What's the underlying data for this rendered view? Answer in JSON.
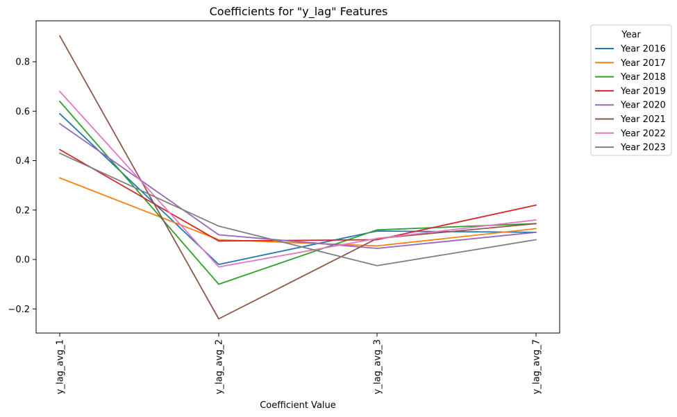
{
  "chart_data": {
    "type": "line",
    "title": "Coefficients for \"y_lag\" Features",
    "xlabel": "Coefficient Value",
    "ylabel": "",
    "categories": [
      "y_lag_avg_1",
      "y_lag_avg_2",
      "y_lag_avg_3",
      "y_lag_avg_7"
    ],
    "ylim": [
      -0.3,
      0.95
    ],
    "yticks": [
      -0.2,
      0.0,
      0.2,
      0.4,
      0.6,
      0.8
    ],
    "ytick_labels": [
      "−0.2",
      "0.0",
      "0.2",
      "0.4",
      "0.6",
      "0.8"
    ],
    "grid": false,
    "legend": {
      "title": "Year",
      "placement": "outside-upper-right"
    },
    "series": [
      {
        "name": "Year 2016",
        "color": "#1f77b4",
        "values": [
          0.59,
          -0.02,
          0.115,
          0.11
        ]
      },
      {
        "name": "Year 2017",
        "color": "#ff7f0e",
        "values": [
          0.33,
          0.08,
          0.055,
          0.125
        ]
      },
      {
        "name": "Year 2018",
        "color": "#2ca02c",
        "values": [
          0.64,
          -0.1,
          0.12,
          0.145
        ]
      },
      {
        "name": "Year 2019",
        "color": "#d62728",
        "values": [
          0.445,
          0.075,
          0.08,
          0.22
        ]
      },
      {
        "name": "Year 2020",
        "color": "#9467bd",
        "values": [
          0.55,
          0.1,
          0.045,
          0.11
        ]
      },
      {
        "name": "Year 2021",
        "color": "#8c564b",
        "values": [
          0.905,
          -0.24,
          0.085,
          0.145
        ]
      },
      {
        "name": "Year 2022",
        "color": "#e377c2",
        "values": [
          0.68,
          -0.03,
          0.085,
          0.16
        ]
      },
      {
        "name": "Year 2023",
        "color": "#7f7f7f",
        "values": [
          0.43,
          0.135,
          -0.025,
          0.08
        ]
      }
    ]
  }
}
